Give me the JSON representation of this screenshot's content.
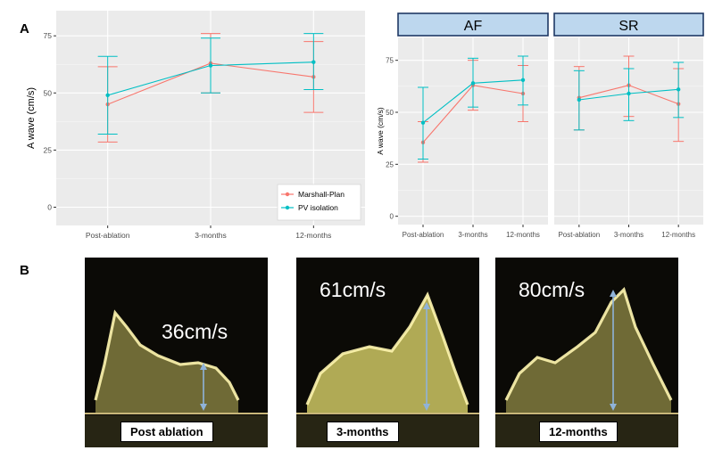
{
  "panel_a_label": "A",
  "panel_b_label": "B",
  "chart_data": [
    {
      "type": "line",
      "categories": [
        "Post-ablation",
        "3-months",
        "12-months"
      ],
      "ylabel": "A wave (cm/s)",
      "yticks": [
        0,
        25,
        50,
        75
      ],
      "ylim": [
        -8,
        86
      ],
      "grid": true,
      "legend": "bottom-right",
      "series": [
        {
          "name": "Marshall-Plan",
          "color": "#f8766d",
          "values": [
            45,
            63,
            57
          ],
          "lower": [
            28.5,
            50,
            41.5
          ],
          "upper": [
            61.5,
            76,
            72.5
          ]
        },
        {
          "name": "PV isolation",
          "color": "#00bfc4",
          "values": [
            49,
            62,
            63.5
          ],
          "lower": [
            32,
            50,
            51.5
          ],
          "upper": [
            66,
            74,
            76
          ]
        }
      ]
    },
    {
      "type": "line",
      "facets": [
        "AF",
        "SR"
      ],
      "categories": [
        "Post-ablation",
        "3-months",
        "12-months"
      ],
      "ylabel": "A wave (cm/s)",
      "yticks": [
        0,
        25,
        50,
        75
      ],
      "ylim": [
        -4,
        86
      ],
      "grid": true,
      "series": [
        {
          "color": "#f8766d",
          "AF": {
            "values": [
              35.5,
              63,
              59
            ],
            "lower": [
              26,
              51,
              45.5
            ],
            "upper": [
              45.5,
              75,
              72.5
            ]
          },
          "SR": {
            "values": [
              57,
              63,
              54
            ],
            "lower": [
              41.5,
              48,
              36
            ],
            "upper": [
              72,
              77,
              71
            ]
          }
        },
        {
          "color": "#00bfc4",
          "AF": {
            "values": [
              45,
              64,
              65.5
            ],
            "lower": [
              27.5,
              52.5,
              53.5
            ],
            "upper": [
              62,
              76,
              77
            ]
          },
          "SR": {
            "values": [
              56,
              59,
              61
            ],
            "lower": [
              41.5,
              46,
              47.5
            ],
            "upper": [
              70,
              71,
              74
            ]
          }
        }
      ]
    }
  ],
  "echo_panels": [
    {
      "speed": "36cm/s",
      "caption": "Post ablation"
    },
    {
      "speed": "61cm/s",
      "caption": "3-months"
    },
    {
      "speed": "80cm/s",
      "caption": "12-months"
    }
  ],
  "colors": {
    "plot_bg": "#ebebeb",
    "grid": "#ffffff",
    "strip_fill": "#bdd7ee",
    "strip_border": "#1f3864",
    "measure_arrow": "#8fb3d9",
    "echo_signal": "#e8e070"
  }
}
